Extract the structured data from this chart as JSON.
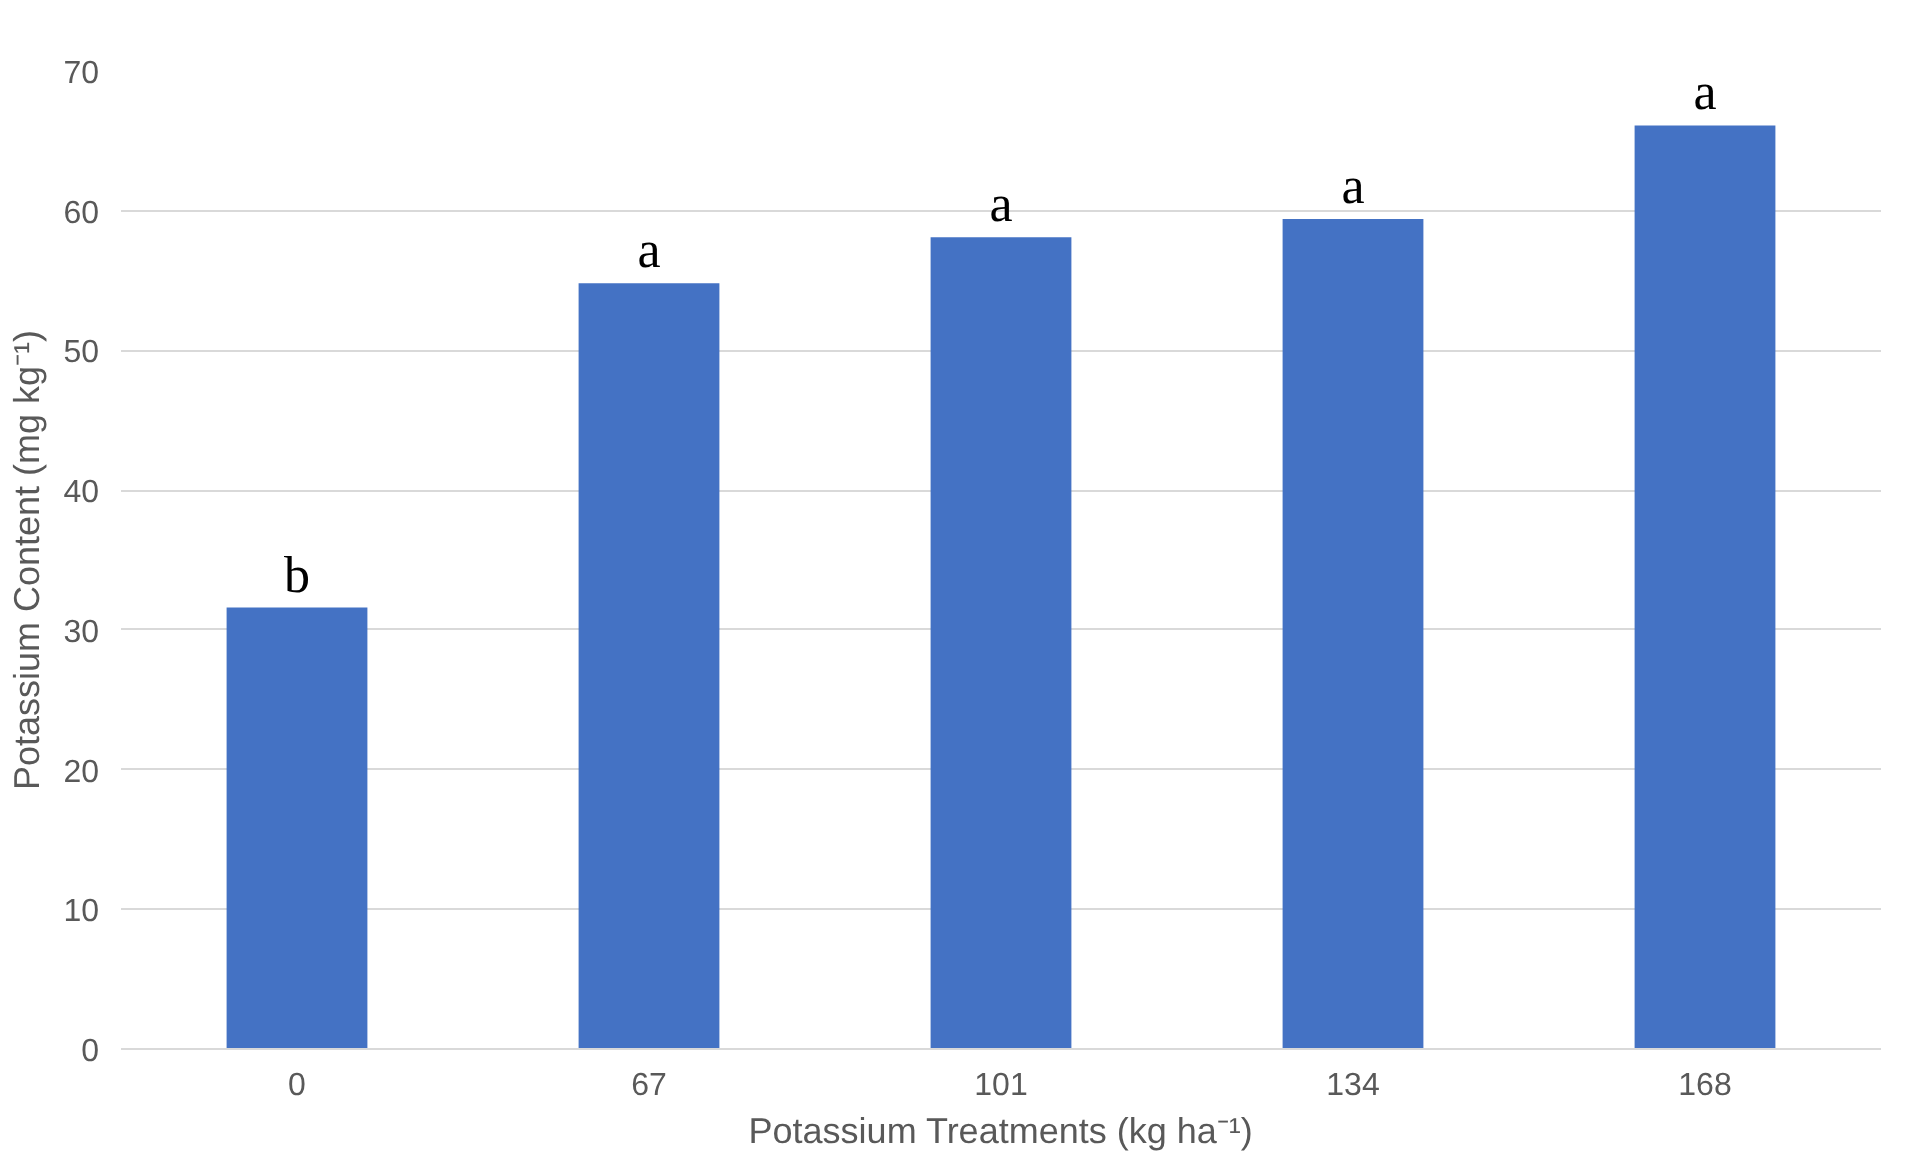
{
  "chart_data": {
    "type": "bar",
    "xlabel": "Potassium Treatments (kg ha⁻¹)",
    "ylabel": "Potassium Content (mg kg⁻¹)",
    "categories": [
      "0",
      "67",
      "101",
      "134",
      "168"
    ],
    "values": [
      31.6,
      54.8,
      58.1,
      59.4,
      66.1
    ],
    "color": "#4472c4",
    "ylim": [
      0,
      70
    ],
    "yticks": [
      0,
      10,
      20,
      30,
      40,
      50,
      60,
      70
    ],
    "grid": "y",
    "annotations": [
      {
        "text": "b",
        "x": "0",
        "y": 31.6
      },
      {
        "text": "a",
        "x": "67",
        "y": 54.8
      },
      {
        "text": "a",
        "x": "101",
        "y": 58.1
      },
      {
        "text": "a",
        "x": "134",
        "y": 59.4
      },
      {
        "text": "a",
        "x": "168",
        "y": 66.1
      }
    ]
  }
}
